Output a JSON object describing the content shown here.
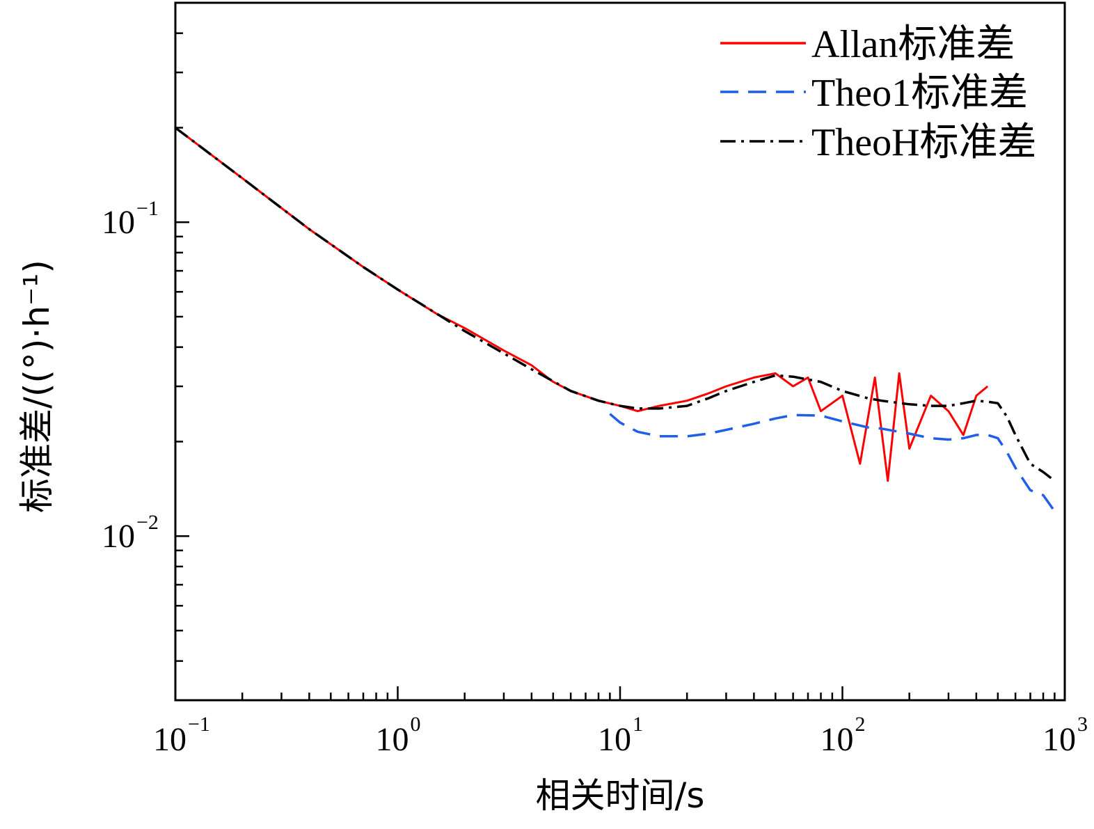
{
  "chart_data": {
    "type": "line",
    "xlabel": "相关时间/s",
    "ylabel": "标准差/((°)·h⁻¹)",
    "xscale": "log",
    "yscale": "log",
    "xlim": [
      0.1,
      1000
    ],
    "ylim": [
      0.003,
      0.5
    ],
    "legend_position": "top-right",
    "grid": false,
    "x_ticks": [
      {
        "base": "10",
        "exp": "−1"
      },
      {
        "base": "10",
        "exp": "0"
      },
      {
        "base": "10",
        "exp": "1"
      },
      {
        "base": "10",
        "exp": "2"
      },
      {
        "base": "10",
        "exp": "3"
      }
    ],
    "y_ticks": [
      {
        "base": "10",
        "exp": "−1"
      },
      {
        "base": "10",
        "exp": "−2"
      }
    ],
    "series": [
      {
        "name": "Allan标准差",
        "color": "#ff0000",
        "dash": "solid",
        "x": [
          0.1,
          0.2,
          0.4,
          0.7,
          1.0,
          1.5,
          2.0,
          3.0,
          4.0,
          5.0,
          6.0,
          8.0,
          10,
          12,
          15,
          20,
          25,
          30,
          40,
          50,
          60,
          70,
          80,
          100,
          120,
          140,
          160,
          180,
          200,
          250,
          300,
          350,
          400,
          450
        ],
        "y": [
          0.2,
          0.138,
          0.095,
          0.072,
          0.061,
          0.051,
          0.046,
          0.039,
          0.035,
          0.031,
          0.029,
          0.027,
          0.026,
          0.025,
          0.026,
          0.027,
          0.0285,
          0.03,
          0.032,
          0.033,
          0.03,
          0.032,
          0.025,
          0.028,
          0.017,
          0.032,
          0.015,
          0.033,
          0.019,
          0.028,
          0.025,
          0.021,
          0.028,
          0.03
        ]
      },
      {
        "name": "Theo1标准差",
        "color": "#1f5fe6",
        "dash": "dashed",
        "x": [
          9,
          10,
          12,
          15,
          20,
          25,
          30,
          40,
          50,
          60,
          80,
          100,
          130,
          150,
          200,
          250,
          300,
          350,
          400,
          450,
          500,
          550,
          600,
          700,
          800,
          900
        ],
        "y": [
          0.0245,
          0.023,
          0.0215,
          0.0208,
          0.0208,
          0.0212,
          0.0218,
          0.0228,
          0.0237,
          0.0243,
          0.0242,
          0.0232,
          0.0222,
          0.022,
          0.0212,
          0.0205,
          0.0203,
          0.0205,
          0.021,
          0.021,
          0.0205,
          0.0185,
          0.0165,
          0.014,
          0.0135,
          0.012
        ]
      },
      {
        "name": "TheoH标准差",
        "color": "#000000",
        "dash": "dashdot",
        "x": [
          0.1,
          0.2,
          0.4,
          0.7,
          1.0,
          2.0,
          4.0,
          6.0,
          8.0,
          10,
          12,
          15,
          20,
          25,
          30,
          40,
          50,
          60,
          80,
          100,
          130,
          150,
          200,
          250,
          300,
          350,
          400,
          450,
          500,
          550,
          600,
          700,
          800,
          900
        ],
        "y": [
          0.2,
          0.138,
          0.095,
          0.072,
          0.061,
          0.045,
          0.034,
          0.029,
          0.027,
          0.026,
          0.0255,
          0.0255,
          0.026,
          0.0275,
          0.029,
          0.031,
          0.0325,
          0.0322,
          0.031,
          0.029,
          0.0275,
          0.027,
          0.0263,
          0.026,
          0.026,
          0.0265,
          0.027,
          0.0268,
          0.0265,
          0.024,
          0.021,
          0.017,
          0.016,
          0.015
        ]
      }
    ]
  }
}
